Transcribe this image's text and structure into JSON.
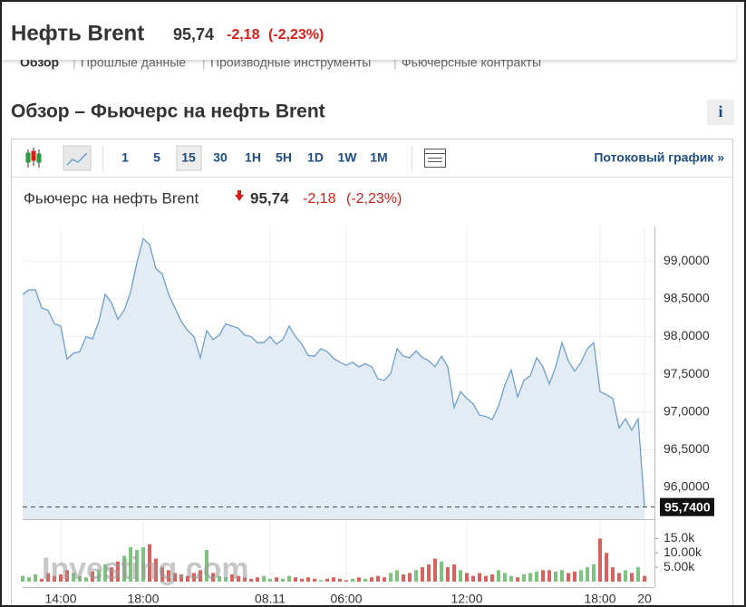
{
  "header": {
    "title": "Нефть Brent",
    "price": "95,74",
    "change": "-2,18",
    "change_pct": "(-2,23%)"
  },
  "tabs": [
    "Обзор",
    "Прошлые данные",
    "Производные инструменты",
    "Фьючерсные контракты"
  ],
  "section_title": "Обзор – Фьючерс на нефть Brent",
  "info_button": "i",
  "toolbar": {
    "intervals": [
      "1",
      "5",
      "15",
      "30",
      "1H",
      "5H",
      "1D",
      "1W",
      "1M"
    ],
    "stream_link": "Потоковый график »"
  },
  "watermark": "Investing.com",
  "chart_data": [
    {
      "type": "line",
      "title": "Фьючерс на нефть Brent",
      "price": "95,74",
      "change": "-2,18",
      "change_pct": "(-2,23%)",
      "color": "#6f9fcf",
      "fill": "#e3ecf5",
      "grid": true,
      "last_label": "95,7400",
      "categories": [
        null,
        null,
        null,
        null,
        null,
        null,
        "14:00",
        null,
        null,
        null,
        null,
        null,
        null,
        null,
        null,
        null,
        null,
        null,
        null,
        "18:00",
        null,
        null,
        null,
        null,
        null,
        null,
        null,
        null,
        null,
        null,
        null,
        null,
        null,
        null,
        null,
        null,
        null,
        null,
        null,
        "08.11",
        null,
        null,
        null,
        null,
        null,
        null,
        null,
        null,
        null,
        null,
        null,
        "06:00",
        null,
        null,
        null,
        null,
        null,
        null,
        null,
        null,
        null,
        null,
        null,
        null,
        null,
        null,
        null,
        null,
        null,
        null,
        "12:00",
        null,
        null,
        null,
        null,
        null,
        null,
        null,
        null,
        null,
        null,
        null,
        null,
        null,
        null,
        null,
        null,
        null,
        null,
        null,
        null,
        "18:00",
        null,
        null,
        null,
        null,
        null,
        null,
        "20"
      ],
      "values": [
        98.56,
        98.62,
        98.62,
        98.38,
        98.35,
        98.17,
        98.14,
        97.7,
        97.78,
        97.8,
        98.0,
        97.97,
        98.2,
        98.56,
        98.45,
        98.23,
        98.35,
        98.59,
        98.98,
        99.3,
        99.22,
        98.9,
        98.83,
        98.56,
        98.38,
        98.2,
        98.08,
        98.0,
        97.72,
        98.08,
        97.96,
        98.02,
        98.17,
        98.14,
        98.11,
        98.02,
        98.0,
        97.92,
        97.92,
        98.0,
        97.9,
        97.96,
        98.14,
        98.0,
        97.9,
        97.75,
        97.74,
        97.84,
        97.8,
        97.71,
        97.66,
        97.62,
        97.66,
        97.6,
        97.64,
        97.6,
        97.44,
        97.42,
        97.51,
        97.84,
        97.74,
        97.72,
        97.81,
        97.72,
        97.68,
        97.6,
        97.74,
        97.6,
        97.06,
        97.27,
        97.18,
        97.11,
        96.96,
        96.94,
        96.9,
        97.08,
        97.36,
        97.56,
        97.2,
        97.42,
        97.48,
        97.72,
        97.6,
        97.37,
        97.6,
        97.92,
        97.68,
        97.54,
        97.66,
        97.84,
        97.92,
        97.27,
        97.23,
        97.18,
        96.79,
        96.91,
        96.76,
        96.91,
        95.74
      ],
      "ylim": [
        95.58,
        99.46
      ],
      "yticks": [
        {
          "value": 96,
          "label": "96,0000"
        },
        {
          "value": 96.5,
          "label": "96,5000"
        },
        {
          "value": 97,
          "label": "97,0000"
        },
        {
          "value": 97.5,
          "label": "97,5000"
        },
        {
          "value": 98,
          "label": "98,0000"
        },
        {
          "value": 98.5,
          "label": "98,5000"
        },
        {
          "value": 99,
          "label": "99,0000"
        }
      ]
    },
    {
      "type": "bar",
      "up_color": "#7cc47f",
      "down_color": "#d9625e",
      "values": [
        2000,
        1500,
        2500,
        1000,
        3000,
        2000,
        2500,
        4000,
        3000,
        2000,
        1500,
        3500,
        4000,
        6000,
        5000,
        7000,
        9000,
        12000,
        11000,
        12000,
        13000,
        8000,
        5000,
        4000,
        3000,
        2500,
        2000,
        3000,
        4000,
        11000,
        3000,
        2000,
        1500,
        2500,
        2000,
        1500,
        1000,
        1500,
        2000,
        1000,
        1500,
        1000,
        2000,
        1500,
        1000,
        1500,
        1000,
        500,
        1000,
        1500,
        1000,
        500,
        1000,
        1500,
        1000,
        1500,
        2000,
        1500,
        3000,
        4000,
        2500,
        3000,
        4000,
        5000,
        6000,
        8000,
        7000,
        5000,
        6000,
        4000,
        3000,
        2000,
        3000,
        2000,
        2500,
        4000,
        3000,
        2000,
        1500,
        2500,
        3000,
        3500,
        4000,
        4000,
        3500,
        4000,
        3000,
        3500,
        4000,
        5000,
        6000,
        15000,
        10000,
        5000,
        3000,
        4000,
        3000,
        5000,
        2000
      ],
      "ylim": [
        0,
        17000
      ],
      "yticks": [
        {
          "value": 5000,
          "label": "5.00k"
        },
        {
          "value": 10000,
          "label": "10.00k"
        },
        {
          "value": 15000,
          "label": "15.0k"
        }
      ]
    }
  ]
}
